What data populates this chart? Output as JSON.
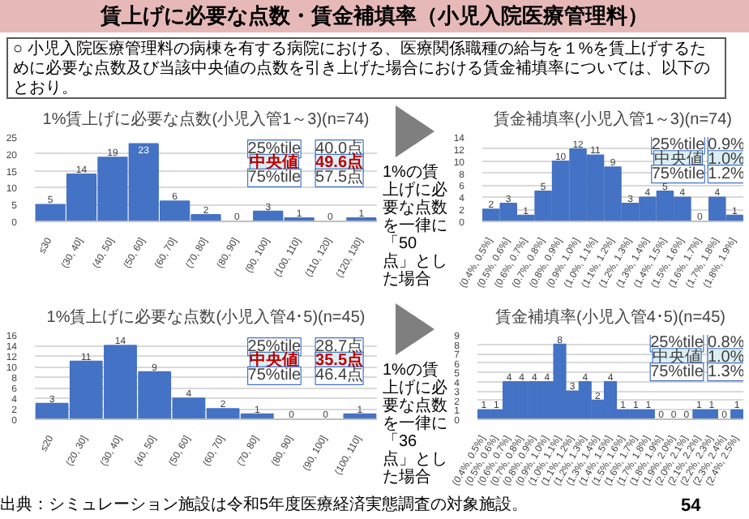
{
  "chart_data": [
    {
      "type": "bar",
      "title": "1%賃上げに必要な点数(小児入管1～3)(n=74)",
      "categories": [
        "≤30",
        "(30, 40]",
        "(40, 50]",
        "(50, 60]",
        "(60, 70]",
        "(70, 80]",
        "(80, 90]",
        "(90, 100]",
        "(100, 110]",
        "(110, 120]",
        "(120, 130]"
      ],
      "values": [
        5,
        14,
        19,
        23,
        6,
        2,
        0,
        3,
        1,
        0,
        1
      ],
      "color": "#4472c4",
      "ylim": [
        0,
        25
      ],
      "yticks": [
        0,
        5,
        10,
        15,
        20,
        25
      ],
      "grid": "y",
      "data_labels": true,
      "annotations": [
        "25%tile",
        "40.0点",
        "中央値",
        "49.6点",
        "75%tile",
        "57.5点",
        "賃上げに必要な点数・賃金補填率（小児入院医療管理料）",
        "○ 小児入院医療管理料の病棟を有する病院における、医療関係職種の給与を１%を賃上げするために必要な点数及び当該中央値の点数を引き上げた場合における賃金補填率については、以下のとおり。"
      ]
    },
    {
      "type": "bar",
      "title": "賃金補填率(小児入管1～3)(n=74)",
      "categories": [
        "(0.4%, 0.5%]",
        "(0.5%, 0.6%]",
        "(0.6%, 0.7%]",
        "(0.7%, 0.8%]",
        "(0.8%, 0.9%]",
        "(0.9%, 1.0%]",
        "(1.0%, 1.1%]",
        "(1.1%, 1.2%]",
        "(1.2%, 1.3%]",
        "(1.3%, 1.4%]",
        "(1.4%, 1.5%]",
        "(1.5%, 1.6%]",
        "(1.6%, 1.7%]",
        "(1.7%, 1.8%]",
        "(1.8%, 1.9%]"
      ],
      "values": [
        2,
        3,
        1,
        5,
        10,
        12,
        11,
        9,
        3,
        4,
        5,
        4,
        0,
        4,
        1
      ],
      "color": "#4472c4",
      "ylim": [
        0,
        14
      ],
      "yticks": [
        0,
        2,
        4,
        6,
        8,
        10,
        12,
        14
      ],
      "grid": "y",
      "data_labels": true,
      "annotations": [
        "25%tile",
        "0.9%",
        "中央値",
        "1.0%",
        "75%tile",
        "1.2%",
        "1%の賃上げに必要な点数を一律に「50点」とした場合"
      ]
    },
    {
      "type": "bar",
      "title": "1%賃上げに必要な点数(小児入管4･5)(n=45)",
      "categories": [
        "≤20",
        "(20, 30]",
        "(30, 40]",
        "(40, 50]",
        "(50, 60]",
        "(60, 70]",
        "(70, 80]",
        "(80, 90]",
        "(90, 100]",
        "(100, 110]"
      ],
      "values": [
        3,
        11,
        14,
        9,
        4,
        2,
        1,
        0,
        0,
        1
      ],
      "color": "#4472c4",
      "ylim": [
        0,
        16
      ],
      "yticks": [
        0,
        2,
        4,
        6,
        8,
        10,
        12,
        14,
        16
      ],
      "grid": "y",
      "data_labels": true,
      "annotations": [
        "25%tile",
        "28.7点",
        "中央値",
        "35.5点",
        "75%tile",
        "46.4点",
        "出典：シミュレーション施設は令和5年度医療経済実態調査の対象施設。"
      ]
    },
    {
      "type": "bar",
      "title": "賃金補填率(小児入管4･5)(n=45)",
      "categories": [
        "(0.4%, 0.5%]",
        "(0.5%, 0.6%]",
        "(0.6%, 0.7%]",
        "(0.7%, 0.8%]",
        "(0.8%, 0.9%]",
        "(0.9%, 1.0%]",
        "(1.0%, 1.1%]",
        "(1.1%, 1.2%]",
        "(1.2%, 1.3%]",
        "(1.3%, 1.4%]",
        "(1.4%, 1.5%]",
        "(1.5%, 1.6%]",
        "(1.6%, 1.7%]",
        "(1.7%, 1.8%]",
        "(1.8%, 1.9%]",
        "(1.9%, 2.0%]",
        "(2.0%, 2.1%]",
        "(2.1%, 2.2%]",
        "(2.2%, 2.3%]",
        "(2.3%, 2.4%]",
        "(2.4%, 2.5%]"
      ],
      "values": [
        1,
        1,
        4,
        4,
        4,
        4,
        8,
        3,
        4,
        2,
        4,
        1,
        1,
        1,
        0,
        0,
        0,
        1,
        1,
        0,
        1
      ],
      "color": "#4472c4",
      "ylim": [
        0,
        9
      ],
      "yticks": [
        0,
        1,
        2,
        3,
        4,
        5,
        6,
        7,
        8,
        9
      ],
      "grid": "y",
      "data_labels": true,
      "annotations": [
        "25%tile",
        "0.8%",
        "中央値",
        "1.0%",
        "75%tile",
        "1.3%",
        "1%の賃上げに必要な点数を一律に「36点」とした場合",
        "54"
      ]
    }
  ]
}
